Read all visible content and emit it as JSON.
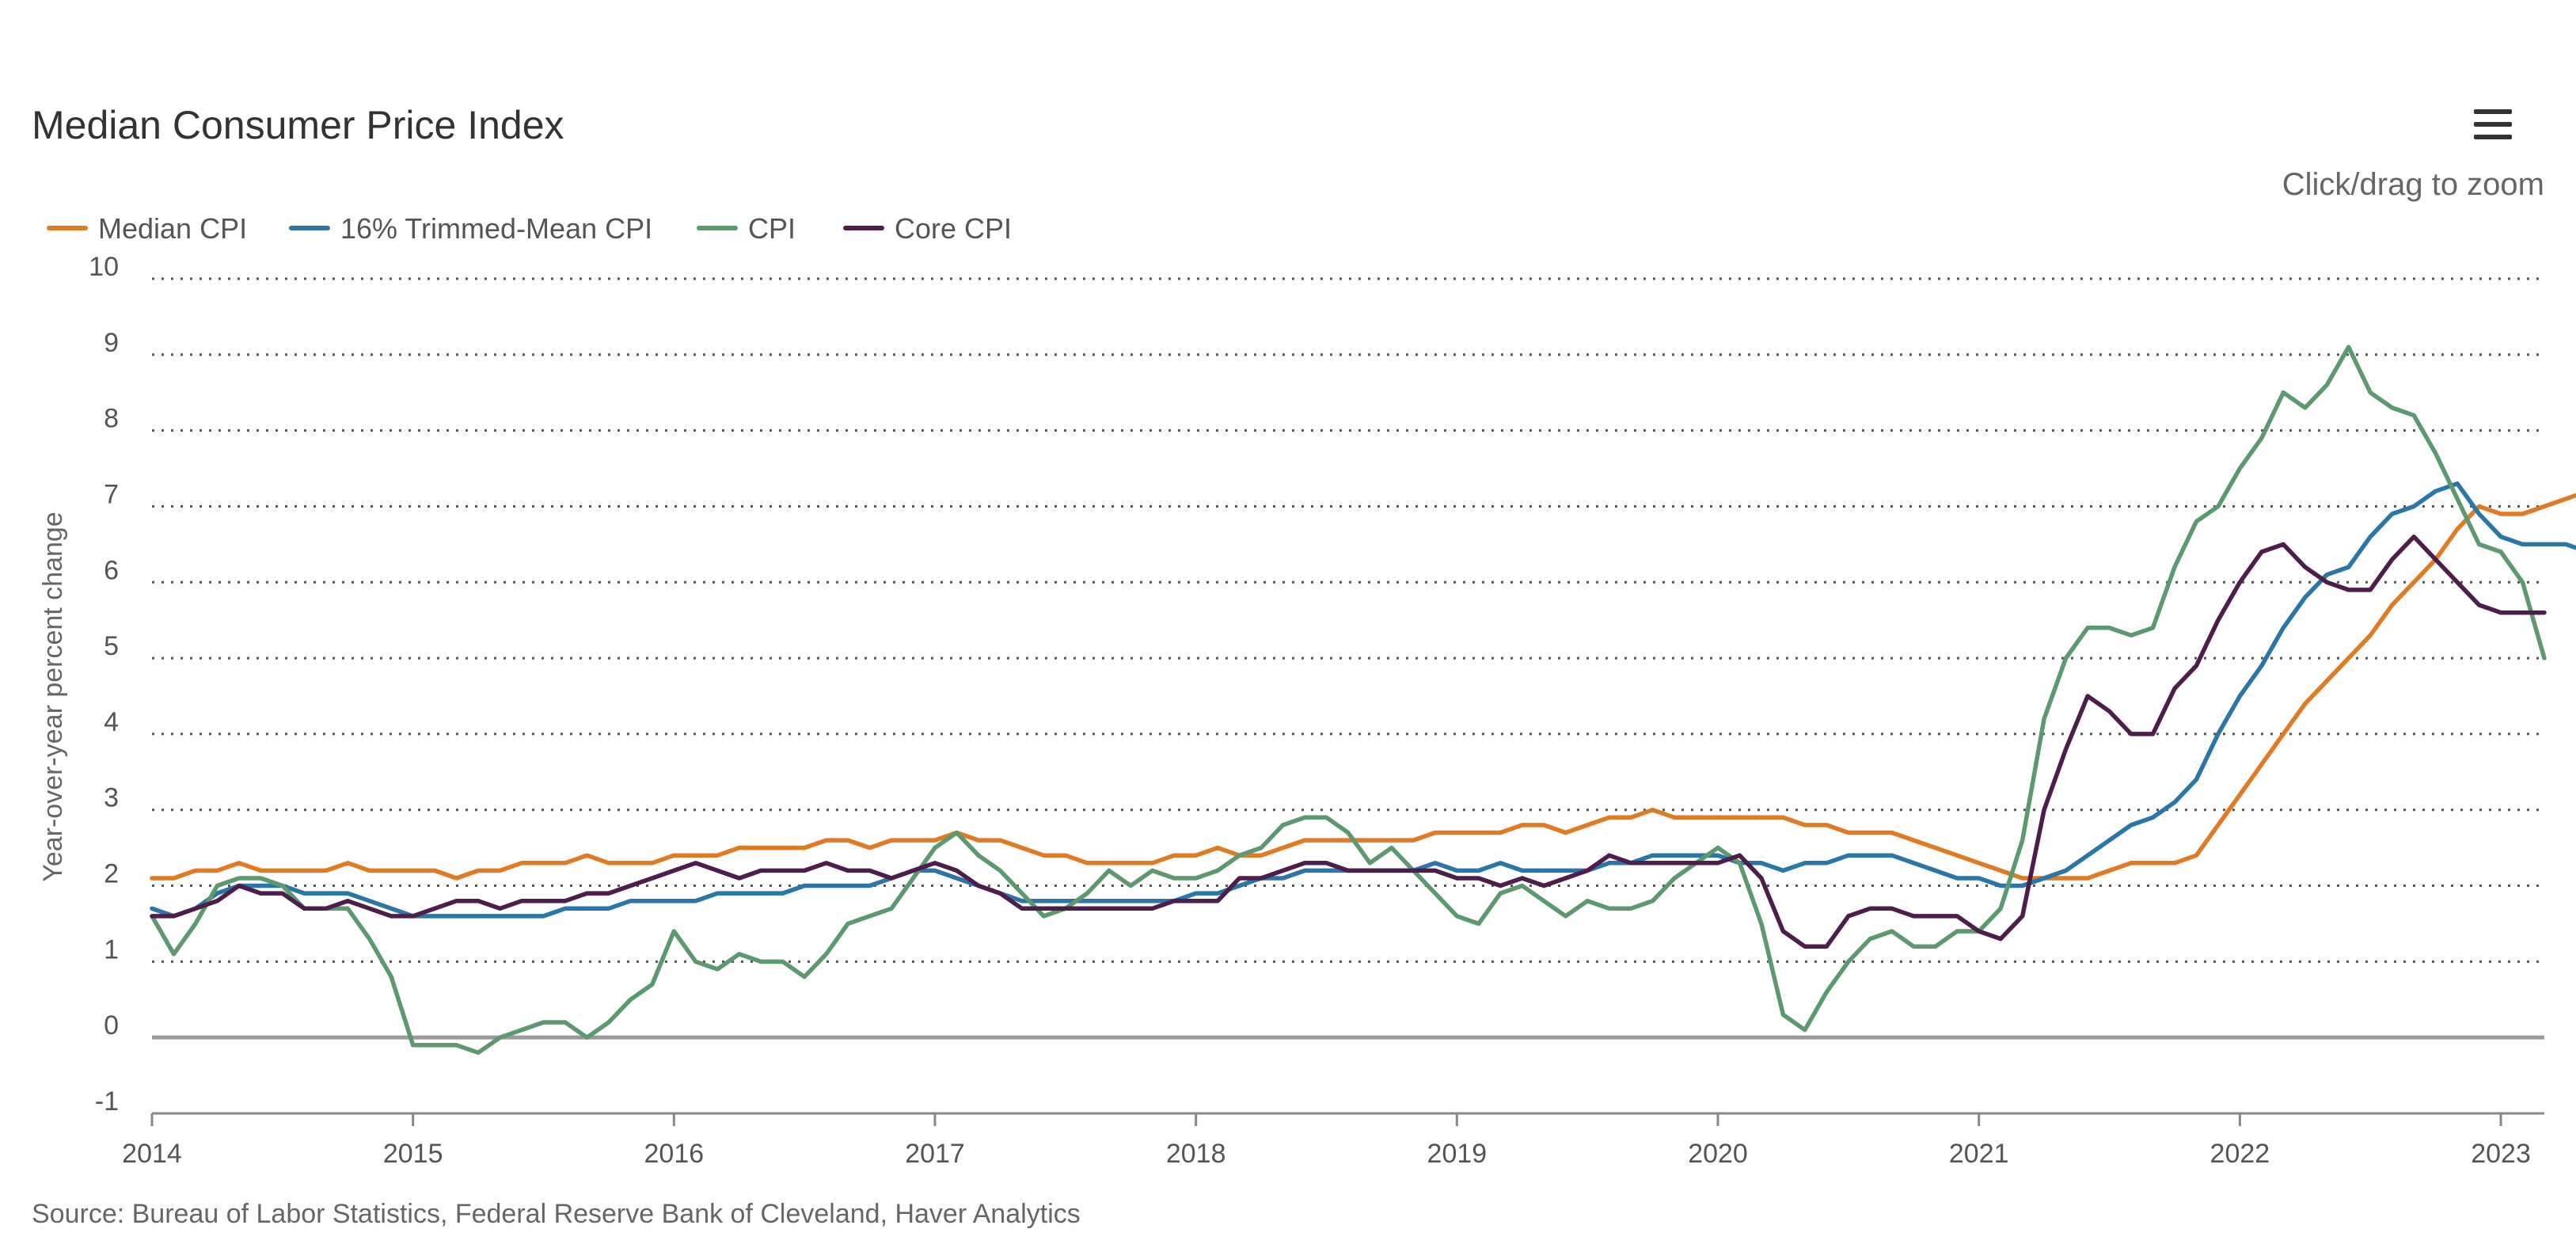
{
  "header": {
    "title": "Median Consumer Price Index",
    "zoom_hint": "Click/drag to zoom",
    "menu_icon": "hamburger-menu-icon"
  },
  "footer": {
    "source": "Source: Bureau of Labor Statistics, Federal Reserve Bank of Cleveland, Haver Analytics"
  },
  "chart_data": {
    "type": "line",
    "title": "Median Consumer Price Index",
    "xlabel": "",
    "ylabel": "Year-over-year percent change",
    "x_start": "2014-01",
    "x_interval": "monthly",
    "xlim": [
      "2014-01",
      "2023-03"
    ],
    "ylim": [
      -1,
      10
    ],
    "x_ticks": [
      "2014",
      "2015",
      "2016",
      "2017",
      "2018",
      "2019",
      "2020",
      "2021",
      "2022",
      "2023"
    ],
    "y_ticks": [
      "-1",
      "0",
      "1",
      "2",
      "3",
      "4",
      "5",
      "6",
      "7",
      "8",
      "9",
      "10"
    ],
    "grid": true,
    "legend_position": "top-left",
    "series": [
      {
        "name": "Median CPI",
        "color": "#e07b24",
        "values": [
          2.1,
          2.1,
          2.2,
          2.2,
          2.3,
          2.2,
          2.2,
          2.2,
          2.2,
          2.3,
          2.2,
          2.2,
          2.2,
          2.2,
          2.1,
          2.2,
          2.2,
          2.3,
          2.3,
          2.3,
          2.4,
          2.3,
          2.3,
          2.3,
          2.4,
          2.4,
          2.4,
          2.5,
          2.5,
          2.5,
          2.5,
          2.6,
          2.6,
          2.5,
          2.6,
          2.6,
          2.6,
          2.7,
          2.6,
          2.6,
          2.5,
          2.4,
          2.4,
          2.3,
          2.3,
          2.3,
          2.3,
          2.4,
          2.4,
          2.5,
          2.4,
          2.4,
          2.5,
          2.6,
          2.6,
          2.6,
          2.6,
          2.6,
          2.6,
          2.7,
          2.7,
          2.7,
          2.7,
          2.8,
          2.8,
          2.7,
          2.8,
          2.9,
          2.9,
          3.0,
          2.9,
          2.9,
          2.9,
          2.9,
          2.9,
          2.9,
          2.8,
          2.8,
          2.7,
          2.7,
          2.7,
          2.6,
          2.5,
          2.4,
          2.3,
          2.2,
          2.1,
          2.1,
          2.1,
          2.1,
          2.2,
          2.3,
          2.3,
          2.3,
          2.4,
          2.8,
          3.2,
          3.6,
          4.0,
          4.4,
          4.7,
          5.0,
          5.3,
          5.7,
          6.0,
          6.3,
          6.7,
          7.0,
          6.9,
          6.9,
          7.0,
          7.1,
          7.2,
          7.1
        ]
      },
      {
        "name": "16% Trimmed-Mean CPI",
        "color": "#2a76a8",
        "values": [
          1.7,
          1.6,
          1.7,
          1.9,
          2.0,
          2.0,
          2.0,
          1.9,
          1.9,
          1.9,
          1.8,
          1.7,
          1.6,
          1.6,
          1.6,
          1.6,
          1.6,
          1.6,
          1.6,
          1.7,
          1.7,
          1.7,
          1.8,
          1.8,
          1.8,
          1.8,
          1.9,
          1.9,
          1.9,
          1.9,
          2.0,
          2.0,
          2.0,
          2.0,
          2.1,
          2.2,
          2.2,
          2.1,
          2.0,
          1.9,
          1.8,
          1.8,
          1.8,
          1.8,
          1.8,
          1.8,
          1.8,
          1.8,
          1.9,
          1.9,
          2.0,
          2.1,
          2.1,
          2.2,
          2.2,
          2.2,
          2.2,
          2.2,
          2.2,
          2.3,
          2.2,
          2.2,
          2.3,
          2.2,
          2.2,
          2.2,
          2.2,
          2.3,
          2.3,
          2.4,
          2.4,
          2.4,
          2.4,
          2.3,
          2.3,
          2.2,
          2.3,
          2.3,
          2.4,
          2.4,
          2.4,
          2.3,
          2.2,
          2.1,
          2.1,
          2.0,
          2.0,
          2.1,
          2.2,
          2.4,
          2.6,
          2.8,
          2.9,
          3.1,
          3.4,
          4.0,
          4.5,
          4.9,
          5.4,
          5.8,
          6.1,
          6.2,
          6.6,
          6.9,
          7.0,
          7.2,
          7.3,
          6.9,
          6.6,
          6.5,
          6.5,
          6.5,
          6.4,
          6.1
        ]
      },
      {
        "name": "CPI",
        "color": "#5d9970",
        "values": [
          1.6,
          1.1,
          1.5,
          2.0,
          2.1,
          2.1,
          2.0,
          1.7,
          1.7,
          1.7,
          1.3,
          0.8,
          -0.1,
          -0.1,
          -0.1,
          -0.2,
          0.0,
          0.1,
          0.2,
          0.2,
          0.0,
          0.2,
          0.5,
          0.7,
          1.4,
          1.0,
          0.9,
          1.1,
          1.0,
          1.0,
          0.8,
          1.1,
          1.5,
          1.6,
          1.7,
          2.1,
          2.5,
          2.7,
          2.4,
          2.2,
          1.9,
          1.6,
          1.7,
          1.9,
          2.2,
          2.0,
          2.2,
          2.1,
          2.1,
          2.2,
          2.4,
          2.5,
          2.8,
          2.9,
          2.9,
          2.7,
          2.3,
          2.5,
          2.2,
          1.9,
          1.6,
          1.5,
          1.9,
          2.0,
          1.8,
          1.6,
          1.8,
          1.7,
          1.7,
          1.8,
          2.1,
          2.3,
          2.5,
          2.3,
          1.5,
          0.3,
          0.1,
          0.6,
          1.0,
          1.3,
          1.4,
          1.2,
          1.2,
          1.4,
          1.4,
          1.7,
          2.6,
          4.2,
          5.0,
          5.4,
          5.4,
          5.3,
          5.4,
          6.2,
          6.8,
          7.0,
          7.5,
          7.9,
          8.5,
          8.3,
          8.6,
          9.1,
          8.5,
          8.3,
          8.2,
          7.7,
          7.1,
          6.5,
          6.4,
          6.0,
          5.0
        ]
      },
      {
        "name": "Core CPI",
        "color": "#4e1d4c",
        "values": [
          1.6,
          1.6,
          1.7,
          1.8,
          2.0,
          1.9,
          1.9,
          1.7,
          1.7,
          1.8,
          1.7,
          1.6,
          1.6,
          1.7,
          1.8,
          1.8,
          1.7,
          1.8,
          1.8,
          1.8,
          1.9,
          1.9,
          2.0,
          2.1,
          2.2,
          2.3,
          2.2,
          2.1,
          2.2,
          2.2,
          2.2,
          2.3,
          2.2,
          2.2,
          2.1,
          2.2,
          2.3,
          2.2,
          2.0,
          1.9,
          1.7,
          1.7,
          1.7,
          1.7,
          1.7,
          1.7,
          1.7,
          1.8,
          1.8,
          1.8,
          2.1,
          2.1,
          2.2,
          2.3,
          2.3,
          2.2,
          2.2,
          2.2,
          2.2,
          2.2,
          2.1,
          2.1,
          2.0,
          2.1,
          2.0,
          2.1,
          2.2,
          2.4,
          2.3,
          2.3,
          2.3,
          2.3,
          2.3,
          2.4,
          2.1,
          1.4,
          1.2,
          1.2,
          1.6,
          1.7,
          1.7,
          1.6,
          1.6,
          1.6,
          1.4,
          1.3,
          1.6,
          3.0,
          3.8,
          4.5,
          4.3,
          4.0,
          4.0,
          4.6,
          4.9,
          5.5,
          6.0,
          6.4,
          6.5,
          6.2,
          6.0,
          5.9,
          5.9,
          6.3,
          6.6,
          6.3,
          6.0,
          5.7,
          5.6,
          5.6,
          5.6
        ]
      }
    ]
  }
}
